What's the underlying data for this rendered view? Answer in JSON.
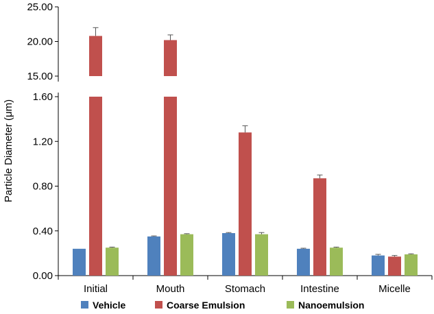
{
  "chart_data": {
    "type": "bar",
    "ylabel": "Particle Diameter (μm)",
    "xlabel": "",
    "title": "",
    "y_axis_break": true,
    "lower_ylim": [
      0,
      1.6
    ],
    "upper_ylim": [
      15,
      25
    ],
    "lower_ticks": [
      "0.00",
      "0.40",
      "0.80",
      "1.20",
      "1.60"
    ],
    "upper_ticks": [
      "15.00",
      "20.00",
      "25.00"
    ],
    "categories": [
      "Initial",
      "Mouth",
      "Stomach",
      "Intestine",
      "Micelle"
    ],
    "series": [
      {
        "name": "Vehicle",
        "color": "#4f81bd",
        "values": [
          0.24,
          0.35,
          0.38,
          0.24,
          0.18
        ],
        "errors": [
          0.0,
          0.005,
          0.005,
          0.005,
          0.01
        ]
      },
      {
        "name": "Coarse Emulsion",
        "color": "#c0504d",
        "values": [
          20.8,
          20.2,
          1.28,
          0.87,
          0.17
        ],
        "errors": [
          1.2,
          0.75,
          0.06,
          0.03,
          0.01
        ]
      },
      {
        "name": "Nanoemulsion",
        "color": "#9bbb59",
        "values": [
          0.25,
          0.37,
          0.37,
          0.25,
          0.19
        ],
        "errors": [
          0.005,
          0.005,
          0.015,
          0.005,
          0.005
        ]
      }
    ],
    "legend_position": "bottom",
    "grid": false
  }
}
